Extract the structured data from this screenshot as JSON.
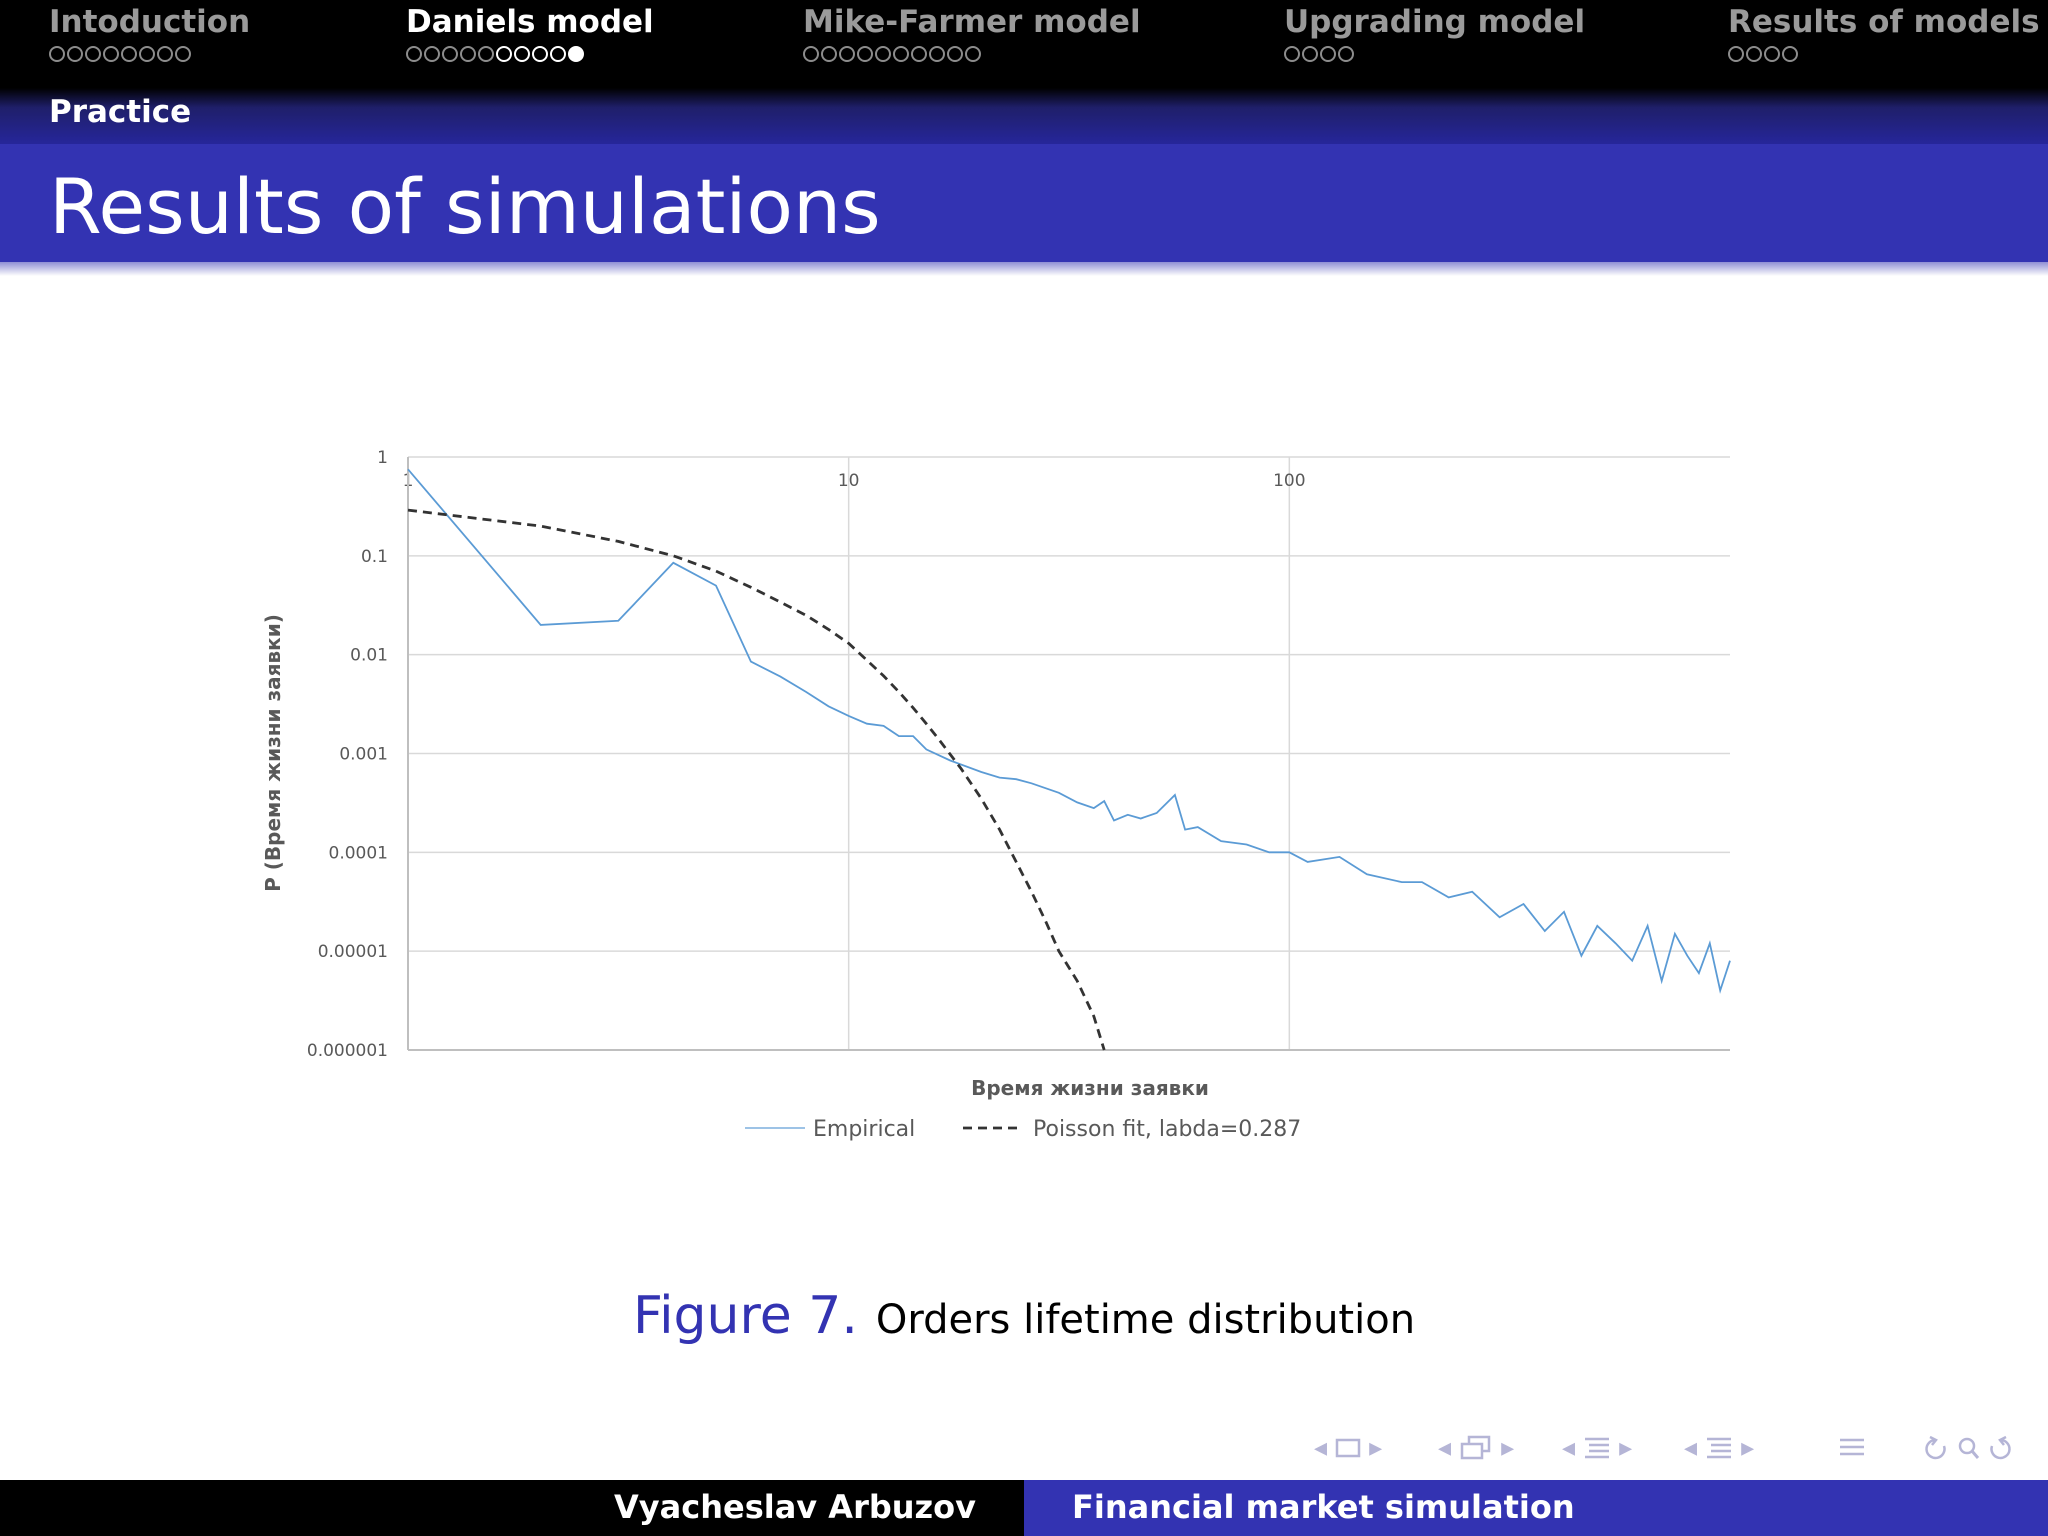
{
  "nav": {
    "sections": [
      {
        "title": "Intoduction",
        "dots": 8,
        "filled": [],
        "active": false
      },
      {
        "title": "Daniels model",
        "dots": 10,
        "filled": [
          9
        ],
        "active": true
      },
      {
        "title": "Mike-Farmer model",
        "dots": 10,
        "filled": [],
        "active": false
      },
      {
        "title": "Upgrading model",
        "dots": 4,
        "filled": [],
        "active": false
      },
      {
        "title": "Results of models",
        "dots": 4,
        "filled": [],
        "active": false
      }
    ],
    "subsection": "Practice"
  },
  "frame": {
    "title": "Results of simulations"
  },
  "caption": {
    "label": "Figure 7.",
    "text": "Orders lifetime distribution"
  },
  "footer": {
    "author": "Vyacheslav Arbuzov",
    "talk": "Financial market simulation"
  },
  "colors": {
    "accent": "#3333b2",
    "empirical": "#9dc3e6",
    "empirical_dense": "#5b9bd5",
    "poisson": "#333333"
  },
  "chart_data": {
    "type": "line",
    "xlabel": "Время жизни заявки",
    "ylabel": "P (Время жизни заявки)",
    "x_scale": "log",
    "y_scale": "log",
    "xlim": [
      1,
      1000
    ],
    "ylim": [
      1e-06,
      1
    ],
    "x_ticks": [
      {
        "value": 1,
        "label": "1"
      },
      {
        "value": 10,
        "label": "10"
      },
      {
        "value": 100,
        "label": "100"
      }
    ],
    "y_ticks": [
      {
        "value": 1,
        "label": "1"
      },
      {
        "value": 0.1,
        "label": "0.1"
      },
      {
        "value": 0.01,
        "label": "0.01"
      },
      {
        "value": 0.001,
        "label": "0.001"
      },
      {
        "value": 0.0001,
        "label": "0.0001"
      },
      {
        "value": 1e-05,
        "label": "0.00001"
      },
      {
        "value": 1e-06,
        "label": "0.000001"
      }
    ],
    "grid": true,
    "legend": "bottom",
    "series": [
      {
        "name": "Empirical",
        "style": "solid",
        "x": [
          1,
          2,
          3,
          4,
          5,
          6,
          7,
          8,
          9,
          10,
          11,
          12,
          13,
          14,
          15,
          17,
          20,
          22,
          24,
          26,
          30,
          33,
          36,
          38,
          40,
          43,
          46,
          50,
          55,
          58,
          62,
          70,
          80,
          90,
          100,
          110,
          130,
          150,
          180,
          200,
          230,
          260,
          300,
          340,
          380,
          420,
          460,
          500,
          550,
          600,
          650,
          700,
          750,
          800,
          850,
          900,
          950,
          1000
        ],
        "y": [
          0.75,
          0.02,
          0.022,
          0.085,
          0.05,
          0.0085,
          0.006,
          0.0042,
          0.003,
          0.0024,
          0.002,
          0.0019,
          0.0015,
          0.0015,
          0.0011,
          0.00085,
          0.00065,
          0.00057,
          0.00055,
          0.0005,
          0.0004,
          0.00032,
          0.00028,
          0.00033,
          0.00021,
          0.00024,
          0.00022,
          0.00025,
          0.00038,
          0.00017,
          0.00018,
          0.00013,
          0.00012,
          0.0001,
          0.0001,
          8e-05,
          9e-05,
          6e-05,
          5e-05,
          5e-05,
          3.5e-05,
          4e-05,
          2.2e-05,
          3e-05,
          1.6e-05,
          2.5e-05,
          9e-06,
          1.8e-05,
          1.2e-05,
          8e-06,
          1.8e-05,
          5e-06,
          1.5e-05,
          9e-06,
          6e-06,
          1.2e-05,
          4e-06,
          8e-06
        ]
      },
      {
        "name": "Poisson fit, labda=0.287",
        "style": "dashed",
        "x": [
          1,
          2,
          3,
          4,
          5,
          6,
          7,
          8,
          9,
          10,
          11,
          12,
          13,
          14,
          15,
          16,
          18,
          20,
          22,
          24,
          26,
          28,
          30,
          33,
          36,
          38
        ],
        "y": [
          0.29,
          0.2,
          0.14,
          0.1,
          0.07,
          0.048,
          0.034,
          0.025,
          0.018,
          0.013,
          0.0088,
          0.0061,
          0.0042,
          0.0029,
          0.002,
          0.0014,
          0.0007,
          0.00035,
          0.00017,
          8e-05,
          4e-05,
          2e-05,
          1e-05,
          5e-06,
          2.2e-06,
          1e-06
        ]
      }
    ]
  }
}
